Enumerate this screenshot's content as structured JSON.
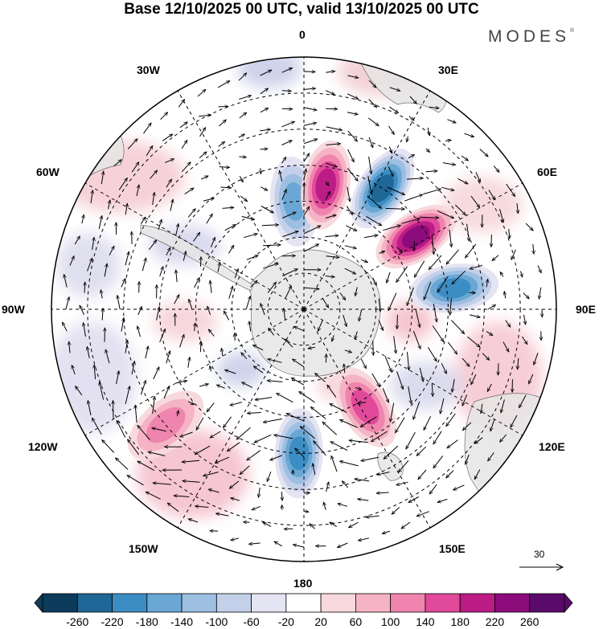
{
  "title": "Base 12/10/2025 00 UTC, valid 13/10/2025 00 UTC",
  "brand": {
    "name": "MODES",
    "mark": "®"
  },
  "longitude_labels": {
    "lon_0": "0",
    "lon_30e": "30E",
    "lon_60e": "60E",
    "lon_90e": "90E",
    "lon_120e": "120E",
    "lon_150e": "150E",
    "lon_180": "180",
    "lon_150w": "150W",
    "lon_120w": "120W",
    "lon_90w": "90W",
    "lon_60w": "60W",
    "lon_30w": "30W"
  },
  "vector_legend": {
    "value": "30"
  },
  "colorbar": {
    "labels": [
      "-260",
      "-220",
      "-180",
      "-140",
      "-100",
      "-60",
      "-20",
      "20",
      "60",
      "100",
      "140",
      "180",
      "220",
      "260"
    ],
    "colors": [
      "#0d3b5c",
      "#1f6796",
      "#3c8dc3",
      "#6aa7d4",
      "#9dbfe2",
      "#c4d0ea",
      "#e5e4f2",
      "#ffffff",
      "#f8d9de",
      "#f5b3c5",
      "#ef85ae",
      "#e1499b",
      "#bc1c86",
      "#8d0c7b",
      "#5a0a6b"
    ]
  },
  "anomaly_centers": [
    {
      "name": "neg-0e-60s",
      "value": -140,
      "lat": -60,
      "lon": -5
    },
    {
      "name": "pos-15e-55s",
      "value": 180,
      "lat": -55,
      "lon": 10
    },
    {
      "name": "neg-35e-50s",
      "value": -220,
      "lat": -50,
      "lon": 33
    },
    {
      "name": "pos-55e-50s",
      "value": 220,
      "lat": -53,
      "lon": 57
    },
    {
      "name": "neg-80e-45s",
      "value": -180,
      "lat": -48,
      "lon": 82
    },
    {
      "name": "pos-150e-55s",
      "value": 140,
      "lat": -58,
      "lon": 148
    },
    {
      "name": "neg-178w-50s",
      "value": -180,
      "lat": -50,
      "lon": -178
    },
    {
      "name": "pos-130w-45s",
      "value": 100,
      "lat": -40,
      "lon": -130
    }
  ]
}
